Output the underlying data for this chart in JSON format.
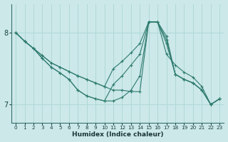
{
  "xlabel": "Humidex (Indice chaleur)",
  "background_color": "#cce8e8",
  "grid_color": "#b0d8d8",
  "line_color": "#2e7b6e",
  "xlim": [
    -0.5,
    23.5
  ],
  "ylim": [
    6.75,
    8.4
  ],
  "yticks": [
    7,
    8
  ],
  "xticks": [
    0,
    1,
    2,
    3,
    4,
    5,
    6,
    7,
    8,
    9,
    10,
    11,
    12,
    13,
    14,
    15,
    16,
    17,
    18,
    19,
    20,
    21,
    22,
    23
  ],
  "lines": [
    [
      8.0,
      7.88,
      7.78,
      7.68,
      7.58,
      7.52,
      7.46,
      7.4,
      7.35,
      7.3,
      7.25,
      7.2,
      7.2,
      7.18,
      7.18,
      8.15,
      8.15,
      7.7,
      7.55,
      7.45,
      7.38,
      7.25,
      7.0,
      7.08
    ],
    [
      8.0,
      7.88,
      7.78,
      7.68,
      7.58,
      7.52,
      7.46,
      7.4,
      7.35,
      7.3,
      7.25,
      7.5,
      7.6,
      7.72,
      7.85,
      8.15,
      8.15,
      7.85,
      7.42,
      7.35,
      7.3,
      7.2,
      7.0,
      7.08
    ],
    [
      8.0,
      7.88,
      7.78,
      7.64,
      7.52,
      7.44,
      7.35,
      7.2,
      7.12,
      7.08,
      7.05,
      7.28,
      7.4,
      7.55,
      7.7,
      8.15,
      8.15,
      7.9,
      7.42,
      7.35,
      7.3,
      7.2,
      7.0,
      7.08
    ],
    [
      8.0,
      7.88,
      7.78,
      7.64,
      7.52,
      7.44,
      7.35,
      7.2,
      7.12,
      7.08,
      7.05,
      7.05,
      7.1,
      7.2,
      7.4,
      8.15,
      8.15,
      7.95,
      7.42,
      7.35,
      7.3,
      7.2,
      7.0,
      7.08
    ]
  ]
}
